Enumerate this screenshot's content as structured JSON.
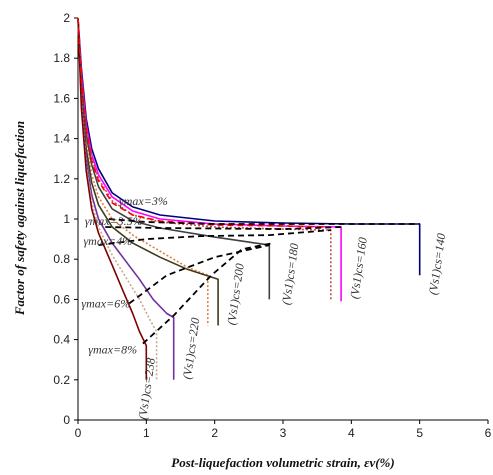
{
  "chart_data": {
    "type": "line",
    "title": "",
    "xlabel": "Post-liquefaction volumetric strain, εv(%)",
    "ylabel": "Factor of safety against liquefaction",
    "xlim": [
      0,
      6
    ],
    "ylim": [
      0,
      2
    ],
    "x_ticks": [
      "0",
      "1",
      "2",
      "3",
      "4",
      "5",
      "6"
    ],
    "y_ticks": [
      "0",
      "0.2",
      "0.4",
      "0.6",
      "0.8",
      "1",
      "1.2",
      "1.4",
      "1.6",
      "1.8",
      "2"
    ],
    "grid": false,
    "legend": "none",
    "series": [
      {
        "color": "#00007f",
        "style": "solid",
        "points": [
          [
            0,
            2
          ],
          [
            0.05,
            1.75
          ],
          [
            0.12,
            1.5
          ],
          [
            0.2,
            1.35
          ],
          [
            0.3,
            1.25
          ],
          [
            0.5,
            1.13
          ],
          [
            0.8,
            1.06
          ],
          [
            1.2,
            1.02
          ],
          [
            2,
            0.99
          ],
          [
            3,
            0.98
          ],
          [
            4,
            0.975
          ],
          [
            5,
            0.975
          ],
          [
            5,
            0.72
          ]
        ]
      },
      {
        "color": "#ff00ff",
        "style": "solid",
        "points": [
          [
            0,
            2
          ],
          [
            0.05,
            1.72
          ],
          [
            0.12,
            1.47
          ],
          [
            0.2,
            1.32
          ],
          [
            0.3,
            1.22
          ],
          [
            0.5,
            1.11
          ],
          [
            0.8,
            1.04
          ],
          [
            1.2,
            1.0
          ],
          [
            2,
            0.975
          ],
          [
            3,
            0.965
          ],
          [
            3.85,
            0.96
          ],
          [
            3.85,
            0.59
          ]
        ]
      },
      {
        "color": "#c0504d",
        "style": "dotted",
        "points": [
          [
            0,
            2
          ],
          [
            0.05,
            1.7
          ],
          [
            0.12,
            1.45
          ],
          [
            0.2,
            1.3
          ],
          [
            0.3,
            1.2
          ],
          [
            0.5,
            1.09
          ],
          [
            0.8,
            1.02
          ],
          [
            1.2,
            0.985
          ],
          [
            2,
            0.96
          ],
          [
            3,
            0.95
          ],
          [
            3.7,
            0.945
          ],
          [
            3.7,
            0.6
          ]
        ]
      },
      {
        "color": "#404040",
        "style": "solid",
        "points": [
          [
            0,
            2
          ],
          [
            0.05,
            1.68
          ],
          [
            0.12,
            1.42
          ],
          [
            0.2,
            1.27
          ],
          [
            0.3,
            1.16
          ],
          [
            0.5,
            1.05
          ],
          [
            0.8,
            0.99
          ],
          [
            1.2,
            0.955
          ],
          [
            2,
            0.91
          ],
          [
            2.5,
            0.885
          ],
          [
            2.8,
            0.87
          ],
          [
            2.8,
            0.6
          ]
        ]
      },
      {
        "color": "#e08040",
        "style": "dotted",
        "points": [
          [
            0,
            2
          ],
          [
            0.05,
            1.65
          ],
          [
            0.12,
            1.38
          ],
          [
            0.2,
            1.22
          ],
          [
            0.3,
            1.11
          ],
          [
            0.5,
            1.0
          ],
          [
            0.8,
            0.92
          ],
          [
            1.2,
            0.84
          ],
          [
            1.6,
            0.76
          ],
          [
            1.9,
            0.72
          ],
          [
            1.9,
            0.47
          ]
        ]
      },
      {
        "color": "#3d3d1a",
        "style": "solid",
        "points": [
          [
            0,
            2
          ],
          [
            0.05,
            1.63
          ],
          [
            0.12,
            1.35
          ],
          [
            0.2,
            1.18
          ],
          [
            0.3,
            1.07
          ],
          [
            0.5,
            0.96
          ],
          [
            0.8,
            0.88
          ],
          [
            1.2,
            0.81
          ],
          [
            1.6,
            0.75
          ],
          [
            2.05,
            0.7
          ],
          [
            2.05,
            0.47
          ]
        ]
      },
      {
        "color": "#7030a0",
        "style": "solid",
        "points": [
          [
            0,
            2
          ],
          [
            0.05,
            1.6
          ],
          [
            0.12,
            1.3
          ],
          [
            0.2,
            1.12
          ],
          [
            0.3,
            1.0
          ],
          [
            0.5,
            0.88
          ],
          [
            0.7,
            0.79
          ],
          [
            0.9,
            0.7
          ],
          [
            1.1,
            0.6
          ],
          [
            1.3,
            0.53
          ],
          [
            1.4,
            0.51
          ],
          [
            1.4,
            0.2
          ]
        ]
      },
      {
        "color": "#c8aa8c",
        "style": "dotted",
        "points": [
          [
            0,
            2
          ],
          [
            0.05,
            1.58
          ],
          [
            0.12,
            1.27
          ],
          [
            0.2,
            1.08
          ],
          [
            0.3,
            0.96
          ],
          [
            0.5,
            0.82
          ],
          [
            0.7,
            0.71
          ],
          [
            0.9,
            0.6
          ],
          [
            1.05,
            0.5
          ],
          [
            1.15,
            0.44
          ],
          [
            1.15,
            0.2
          ]
        ]
      },
      {
        "color": "#7f0000",
        "style": "solid",
        "points": [
          [
            0,
            2
          ],
          [
            0.05,
            1.55
          ],
          [
            0.12,
            1.24
          ],
          [
            0.2,
            1.05
          ],
          [
            0.3,
            0.93
          ],
          [
            0.5,
            0.77
          ],
          [
            0.65,
            0.65
          ],
          [
            0.8,
            0.53
          ],
          [
            0.9,
            0.44
          ],
          [
            1.0,
            0.37
          ],
          [
            1.0,
            0.2
          ]
        ]
      },
      {
        "color": "#ff0000",
        "style": "dashed",
        "points": [
          [
            0,
            2
          ],
          [
            0.05,
            1.7
          ],
          [
            0.12,
            1.45
          ],
          [
            0.2,
            1.29
          ],
          [
            0.3,
            1.19
          ],
          [
            0.5,
            1.08
          ],
          [
            0.8,
            1.02
          ],
          [
            1.2,
            0.99
          ],
          [
            2,
            0.97
          ],
          [
            3,
            0.965
          ],
          [
            3.6,
            0.96
          ]
        ]
      },
      {
        "color": "#000000",
        "style": "dashed",
        "points": [
          [
            0.45,
            1.0
          ],
          [
            1.0,
            0.985
          ],
          [
            2,
            0.975
          ],
          [
            3,
            0.975
          ],
          [
            4,
            0.975
          ],
          [
            5,
            0.975
          ]
        ]
      },
      {
        "color": "#000000",
        "style": "dashed",
        "points": [
          [
            0.4,
            0.96
          ],
          [
            1.2,
            0.955
          ],
          [
            2.2,
            0.952
          ],
          [
            3,
            0.95
          ],
          [
            3.85,
            0.96
          ]
        ]
      },
      {
        "color": "#000000",
        "style": "dashed",
        "points": [
          [
            0.3,
            0.87
          ],
          [
            1.0,
            0.9
          ],
          [
            1.8,
            0.915
          ],
          [
            2.8,
            0.92
          ],
          [
            3.7,
            0.945
          ]
        ]
      },
      {
        "color": "#000000",
        "style": "dashed",
        "points": [
          [
            0.75,
            0.58
          ],
          [
            1.3,
            0.72
          ],
          [
            2.0,
            0.81
          ],
          [
            2.8,
            0.87
          ]
        ]
      },
      {
        "color": "#000000",
        "style": "dashed",
        "points": [
          [
            0.95,
            0.38
          ],
          [
            1.4,
            0.52
          ],
          [
            1.95,
            0.72
          ],
          [
            2.4,
            0.85
          ],
          [
            2.85,
            0.88
          ]
        ]
      }
    ],
    "annotations": [
      {
        "text": "γmax=3%",
        "x": 0.6,
        "y": 1.07,
        "rotate": 0
      },
      {
        "text": "γmax=3.5%",
        "x": 0.1,
        "y": 0.97,
        "rotate": 0
      },
      {
        "text": "γmax=4%",
        "x": 0.08,
        "y": 0.87,
        "rotate": 0
      },
      {
        "text": "γmax=6%",
        "x": 0.05,
        "y": 0.56,
        "rotate": 0
      },
      {
        "text": "γmax=8%",
        "x": 0.15,
        "y": 0.33,
        "rotate": 0
      },
      {
        "text": "(Vs1)cs=140",
        "x": 5.25,
        "y": 0.62,
        "rotate": -82
      },
      {
        "text": "(Vs1)cs=160",
        "x": 4.1,
        "y": 0.6,
        "rotate": -82
      },
      {
        "text": "(Vs1)cs=180",
        "x": 3.1,
        "y": 0.57,
        "rotate": -82
      },
      {
        "text": "(Vs1)cs=200",
        "x": 2.3,
        "y": 0.47,
        "rotate": -82
      },
      {
        "text": "(Vs1)cs=220",
        "x": 1.65,
        "y": 0.2,
        "rotate": -82
      },
      {
        "text": "(Vs1)cs=238",
        "x": 1.0,
        "y": 0.0,
        "rotate": -82
      }
    ]
  }
}
